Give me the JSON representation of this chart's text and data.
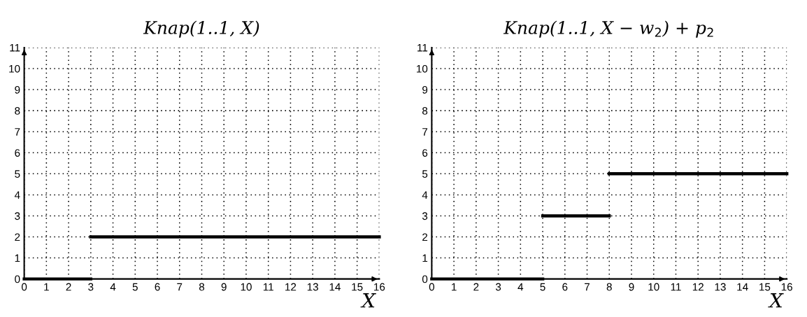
{
  "chart_data": [
    {
      "type": "line",
      "title": "Knap(1..1, X)",
      "xlabel": "X",
      "xlim": [
        0,
        16
      ],
      "ylim": [
        0,
        11
      ],
      "xticks": [
        0,
        1,
        2,
        3,
        4,
        5,
        6,
        7,
        8,
        9,
        10,
        11,
        12,
        13,
        14,
        15,
        16
      ],
      "yticks": [
        0,
        1,
        2,
        3,
        4,
        5,
        6,
        7,
        8,
        9,
        10,
        11
      ],
      "grid": true,
      "line_style": "solid",
      "series": [
        {
          "color": "#000000",
          "x": [
            0,
            3
          ],
          "values": [
            0,
            0
          ]
        },
        {
          "color": "#000000",
          "x": [
            3,
            16
          ],
          "values": [
            2,
            2
          ]
        }
      ]
    },
    {
      "type": "line",
      "title": "Knap(1..1, X − w$_{2}$) + p$_{2}$",
      "xlabel": "X",
      "xlim": [
        0,
        16
      ],
      "ylim": [
        0,
        11
      ],
      "xticks": [
        0,
        1,
        2,
        3,
        4,
        5,
        6,
        7,
        8,
        9,
        10,
        11,
        12,
        13,
        14,
        15,
        16
      ],
      "yticks": [
        0,
        1,
        2,
        3,
        4,
        5,
        6,
        7,
        8,
        9,
        10,
        11
      ],
      "grid": true,
      "line_style": "solid",
      "series": [
        {
          "color": "#000000",
          "x": [
            0,
            5
          ],
          "values": [
            0,
            0
          ]
        },
        {
          "color": "#000000",
          "x": [
            5,
            8
          ],
          "values": [
            3,
            3
          ]
        },
        {
          "color": "#000000",
          "x": [
            8,
            16
          ],
          "values": [
            5,
            5
          ]
        }
      ]
    }
  ]
}
